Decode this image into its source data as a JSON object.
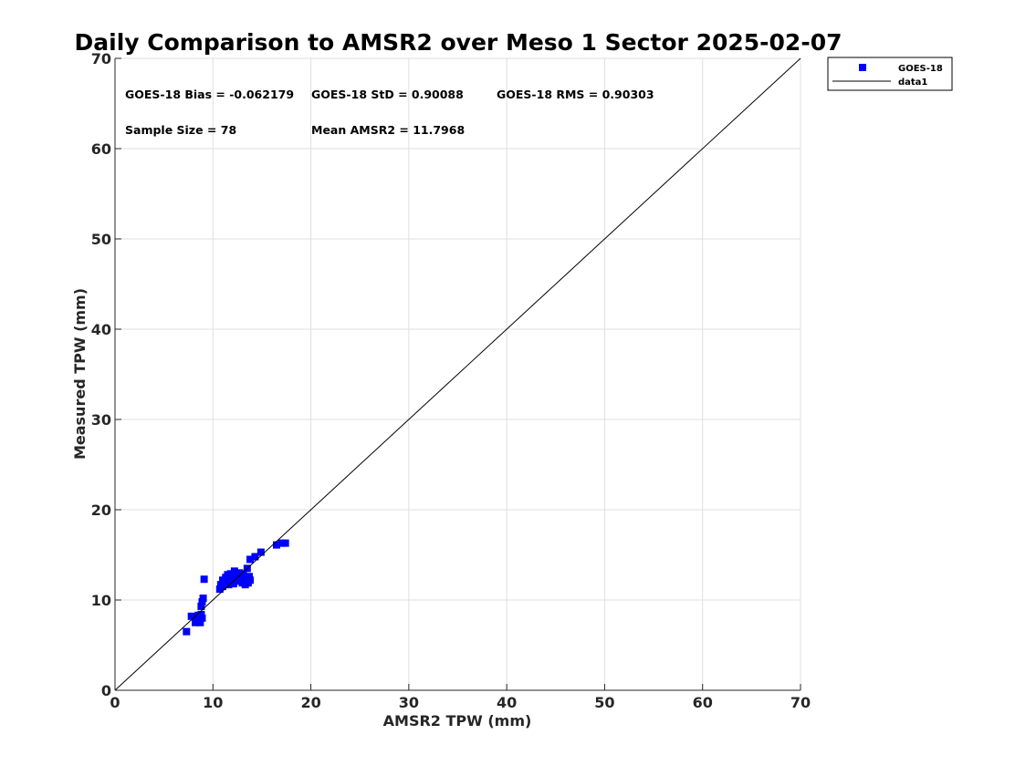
{
  "chart_data": {
    "type": "scatter",
    "title": "Daily Comparison to AMSR2 over Meso 1 Sector 2025-02-07",
    "xlabel": "AMSR2 TPW (mm)",
    "ylabel": "Measured TPW (mm)",
    "xlim": [
      0,
      70
    ],
    "ylim": [
      0,
      70
    ],
    "xticks": [
      0,
      10,
      20,
      30,
      40,
      50,
      60,
      70
    ],
    "yticks": [
      0,
      10,
      20,
      30,
      40,
      50,
      60,
      70
    ],
    "grid": true,
    "legend_position": "outside-top-right",
    "stats": {
      "bias": "GOES-18 Bias = -0.062179",
      "std": "GOES-18 StD = 0.90088",
      "rms": "GOES-18 RMS = 0.90303",
      "sample_size": "Sample Size = 78",
      "mean": "Mean AMSR2 = 11.7968"
    },
    "series": [
      {
        "name": "GOES-18",
        "kind": "markers",
        "color": "#0000ff",
        "points": [
          [
            7.3,
            6.5
          ],
          [
            7.8,
            8.2
          ],
          [
            8.2,
            7.5
          ],
          [
            8.4,
            8.0
          ],
          [
            8.5,
            8.3
          ],
          [
            8.7,
            7.5
          ],
          [
            8.8,
            8.4
          ],
          [
            8.9,
            8.0
          ],
          [
            8.8,
            9.3
          ],
          [
            8.9,
            9.8
          ],
          [
            9.0,
            10.2
          ],
          [
            9.1,
            12.3
          ],
          [
            10.7,
            11.2
          ],
          [
            10.8,
            11.7
          ],
          [
            11.0,
            11.5
          ],
          [
            11.0,
            12.2
          ],
          [
            11.2,
            11.8
          ],
          [
            11.3,
            12.5
          ],
          [
            11.4,
            12.0
          ],
          [
            11.5,
            12.8
          ],
          [
            11.6,
            11.7
          ],
          [
            11.7,
            12.3
          ],
          [
            11.8,
            12.9
          ],
          [
            11.9,
            12.0
          ],
          [
            12.0,
            12.6
          ],
          [
            12.1,
            11.8
          ],
          [
            12.2,
            13.2
          ],
          [
            12.3,
            12.4
          ],
          [
            12.4,
            12.9
          ],
          [
            12.5,
            12.1
          ],
          [
            12.6,
            12.7
          ],
          [
            12.7,
            13.0
          ],
          [
            12.8,
            12.3
          ],
          [
            12.9,
            12.6
          ],
          [
            13.0,
            11.9
          ],
          [
            13.1,
            12.9
          ],
          [
            13.2,
            12.2
          ],
          [
            13.3,
            11.7
          ],
          [
            13.4,
            12.5
          ],
          [
            13.5,
            13.5
          ],
          [
            13.6,
            11.9
          ],
          [
            13.7,
            12.6
          ],
          [
            13.8,
            12.2
          ],
          [
            13.8,
            14.5
          ],
          [
            14.3,
            14.8
          ],
          [
            14.9,
            15.3
          ],
          [
            16.5,
            16.1
          ],
          [
            17.0,
            16.3
          ],
          [
            17.4,
            16.3
          ]
        ]
      },
      {
        "name": "data1",
        "kind": "line",
        "color": "#000000",
        "points": [
          [
            0,
            0
          ],
          [
            70,
            70
          ]
        ]
      }
    ]
  }
}
